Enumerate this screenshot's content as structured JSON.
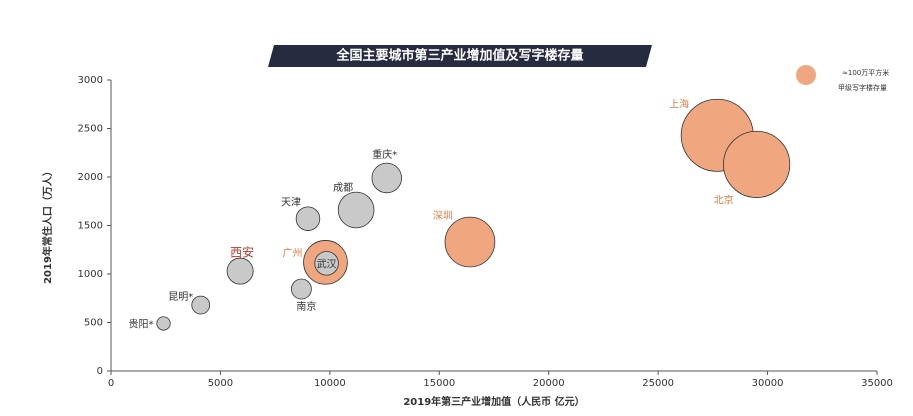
{
  "chart_data": {
    "type": "bubble",
    "title": "全国主要城市第三产业增加值及写字楼存量",
    "x_label": "2019年第三产业增加值（人民币 亿元）",
    "y_label": "2019年常住人口（万人）",
    "xlim": [
      0,
      35000
    ],
    "xticks": [
      0,
      5000,
      10000,
      15000,
      20000,
      25000,
      30000,
      35000
    ],
    "ylim": [
      0,
      3000
    ],
    "yticks": [
      0,
      500,
      1000,
      1500,
      2000,
      2500,
      3000
    ],
    "size_legend": {
      "size": 100,
      "label": "≈100万平方米",
      "caption": "甲级写字楼存量",
      "color": "#f0a77f"
    },
    "points": [
      {
        "label": "贵阳*",
        "x": 2400,
        "y": 490,
        "size": 45,
        "color": "#c9c9c9",
        "label_color": "#333333"
      },
      {
        "label": "昆明*",
        "x": 4100,
        "y": 680,
        "size": 80,
        "color": "#c9c9c9",
        "label_color": "#333333"
      },
      {
        "label": "西安",
        "x": 5900,
        "y": 1030,
        "size": 170,
        "color": "#c9c9c9",
        "label_color": "#c0392b"
      },
      {
        "label": "南京",
        "x": 8700,
        "y": 845,
        "size": 100,
        "color": "#c9c9c9",
        "label_color": "#333333"
      },
      {
        "label": "天津",
        "x": 9000,
        "y": 1570,
        "size": 140,
        "color": "#c9c9c9",
        "label_color": "#333333"
      },
      {
        "label": "广州",
        "x": 9800,
        "y": 1120,
        "size": 480,
        "color": "#f0a77f",
        "label_color": "#e07b45"
      },
      {
        "label": "武汉",
        "x": 9850,
        "y": 1110,
        "size": 140,
        "color": "#c9c9c9",
        "label_color": "#333333"
      },
      {
        "label": "成都",
        "x": 11200,
        "y": 1660,
        "size": 320,
        "color": "#c9c9c9",
        "label_color": "#333333"
      },
      {
        "label": "重庆*",
        "x": 12600,
        "y": 1990,
        "size": 220,
        "color": "#c9c9c9",
        "label_color": "#333333"
      },
      {
        "label": "深圳",
        "x": 16400,
        "y": 1330,
        "size": 620,
        "color": "#f0a77f",
        "label_color": "#e07b45"
      },
      {
        "label": "上海",
        "x": 27700,
        "y": 2430,
        "size": 1300,
        "color": "#f0a77f",
        "label_color": "#e07b45"
      },
      {
        "label": "北京",
        "x": 29500,
        "y": 2130,
        "size": 1100,
        "color": "#f0a77f",
        "label_color": "#e07b45"
      }
    ]
  }
}
